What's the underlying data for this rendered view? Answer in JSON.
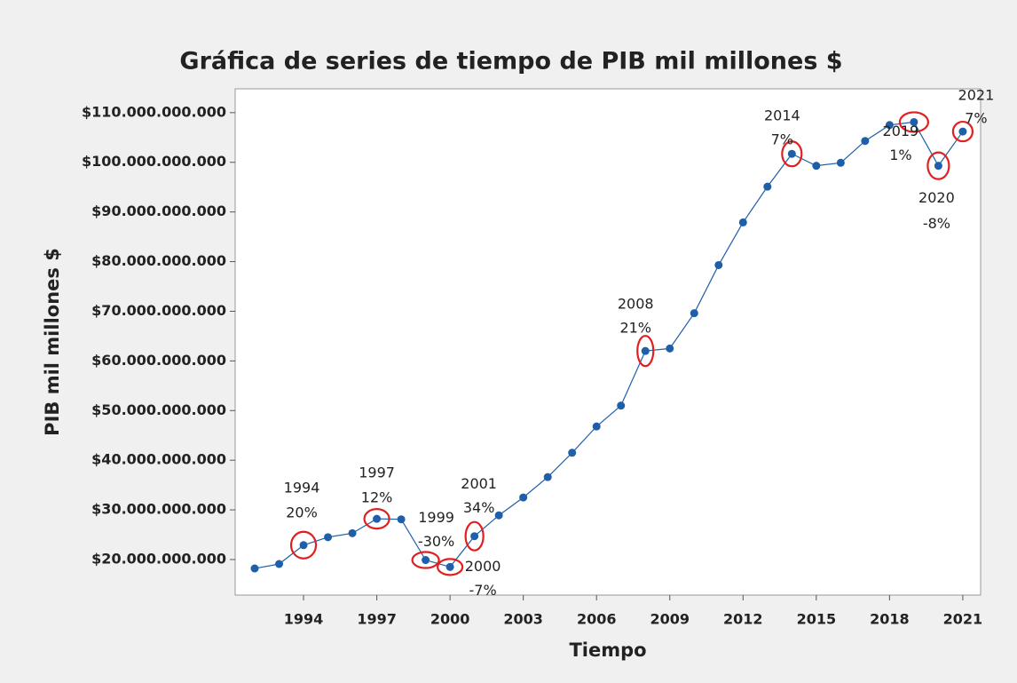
{
  "chart_data": {
    "type": "line",
    "title": "Gráfica de series de tiempo de PIB mil millones $",
    "x_label": "Tiempo",
    "y_label": "PIB mil millones $",
    "x": [
      1992,
      1993,
      1994,
      1995,
      1996,
      1997,
      1998,
      1999,
      2000,
      2001,
      2002,
      2003,
      2004,
      2005,
      2006,
      2007,
      2008,
      2009,
      2010,
      2011,
      2012,
      2013,
      2014,
      2015,
      2016,
      2017,
      2018,
      2019,
      2020,
      2021
    ],
    "series": [
      {
        "name": "PIB",
        "color": "#1f5ea8",
        "values": [
          18200000000,
          19100000000,
          22900000000,
          24500000000,
          25300000000,
          28200000000,
          28100000000,
          19900000000,
          18500000000,
          24700000000,
          28900000000,
          32500000000,
          36600000000,
          41500000000,
          46800000000,
          51000000000,
          62000000000,
          62500000000,
          69600000000,
          79300000000,
          87900000000,
          95100000000,
          101700000000,
          99300000000,
          99900000000,
          104300000000,
          107500000000,
          108100000000,
          99300000000,
          106200000000
        ]
      }
    ],
    "xlim": [
      1991.2,
      2021.73
    ],
    "ylim": [
      12840000000,
      114800000000
    ],
    "xticks": [
      1994,
      1997,
      2000,
      2003,
      2006,
      2009,
      2012,
      2015,
      2018,
      2021
    ],
    "yticks": [
      {
        "value": 20000000000,
        "label": "$20.000.000.000"
      },
      {
        "value": 30000000000,
        "label": "$30.000.000.000"
      },
      {
        "value": 40000000000,
        "label": "$40.000.000.000"
      },
      {
        "value": 50000000000,
        "label": "$50.000.000.000"
      },
      {
        "value": 60000000000,
        "label": "$60.000.000.000"
      },
      {
        "value": 70000000000,
        "label": "$70.000.000.000"
      },
      {
        "value": 80000000000,
        "label": "$80.000.000.000"
      },
      {
        "value": 90000000000,
        "label": "$90.000.000.000"
      },
      {
        "value": 100000000000,
        "label": "$100.000.000.000"
      },
      {
        "value": 110000000000,
        "label": "$110.000.000.000"
      }
    ],
    "annotations": [
      {
        "x": 1994,
        "text": "20%"
      },
      {
        "x": 1997,
        "text": "12%"
      },
      {
        "x": 1999,
        "text": "-30%"
      },
      {
        "x": 2000,
        "text": "-7%"
      },
      {
        "x": 2001,
        "text": "34%"
      },
      {
        "x": 2008,
        "text": "21%"
      },
      {
        "x": 2014,
        "text": "7%"
      },
      {
        "x": 2019,
        "text": "1%"
      },
      {
        "x": 2020,
        "text": "-8%"
      },
      {
        "x": 2021,
        "text": "7%"
      }
    ],
    "annotation_color": "#e02020"
  }
}
